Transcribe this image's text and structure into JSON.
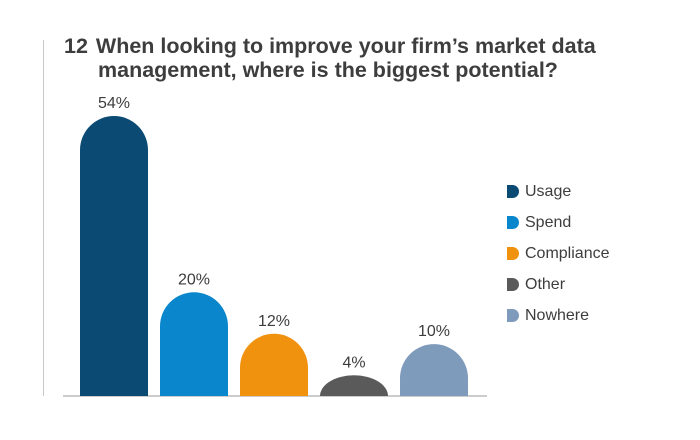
{
  "title": {
    "number": "12",
    "line1": "When looking to improve your firm’s market data",
    "line2": "management, where is the biggest potential?"
  },
  "chart_data": {
    "type": "bar",
    "categories": [
      "Usage",
      "Spend",
      "Compliance",
      "Other",
      "Nowhere"
    ],
    "values": [
      54,
      20,
      12,
      4,
      10
    ],
    "value_labels": [
      "54%",
      "20%",
      "12%",
      "4%",
      "10%"
    ],
    "colors": [
      "#0a4a73",
      "#0a87cc",
      "#f0920d",
      "#5a5a5a",
      "#7f9bbb"
    ],
    "ylim": [
      0,
      54
    ],
    "grid": false,
    "legend_position": "right"
  },
  "legend": [
    {
      "label": "Usage",
      "color": "#0a4a73"
    },
    {
      "label": "Spend",
      "color": "#0a87cc"
    },
    {
      "label": "Compliance",
      "color": "#f0920d"
    },
    {
      "label": "Other",
      "color": "#5a5a5a"
    },
    {
      "label": "Nowhere",
      "color": "#7f9bbb"
    }
  ]
}
